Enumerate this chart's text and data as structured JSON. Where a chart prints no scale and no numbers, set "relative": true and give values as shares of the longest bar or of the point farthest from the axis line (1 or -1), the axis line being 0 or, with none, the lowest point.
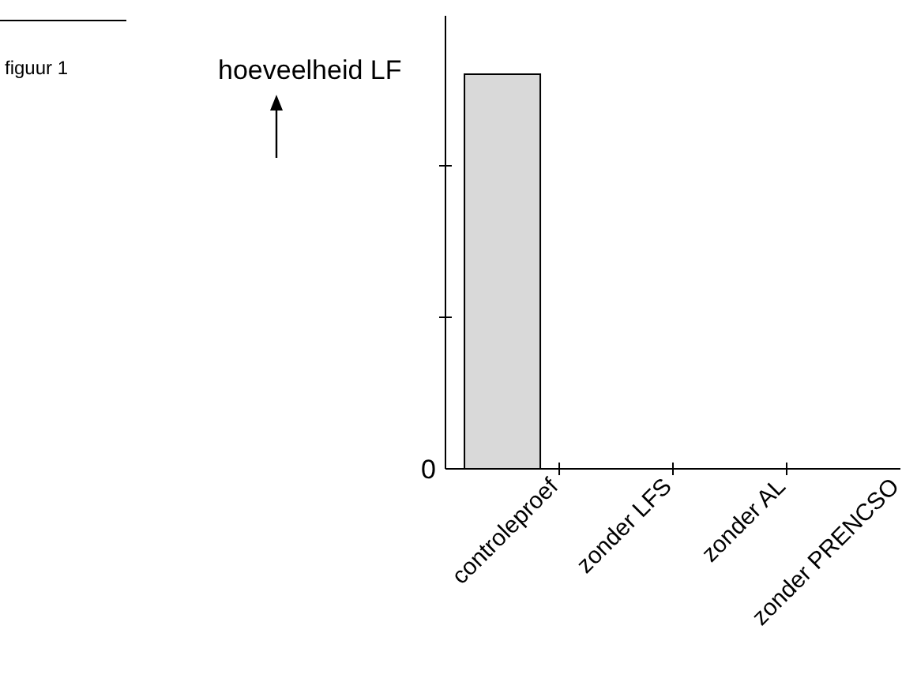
{
  "chart_data": {
    "type": "bar",
    "relative": true,
    "ylabel": "hoeveelheid LF",
    "categories": [
      "controleproef",
      "zonder LFS",
      "zonder AL",
      "zonder PRENCSO"
    ],
    "values": [
      1,
      0,
      0,
      0
    ],
    "color": "#d9d9d9",
    "annotations": [
      "figuur 1",
      "0"
    ]
  }
}
